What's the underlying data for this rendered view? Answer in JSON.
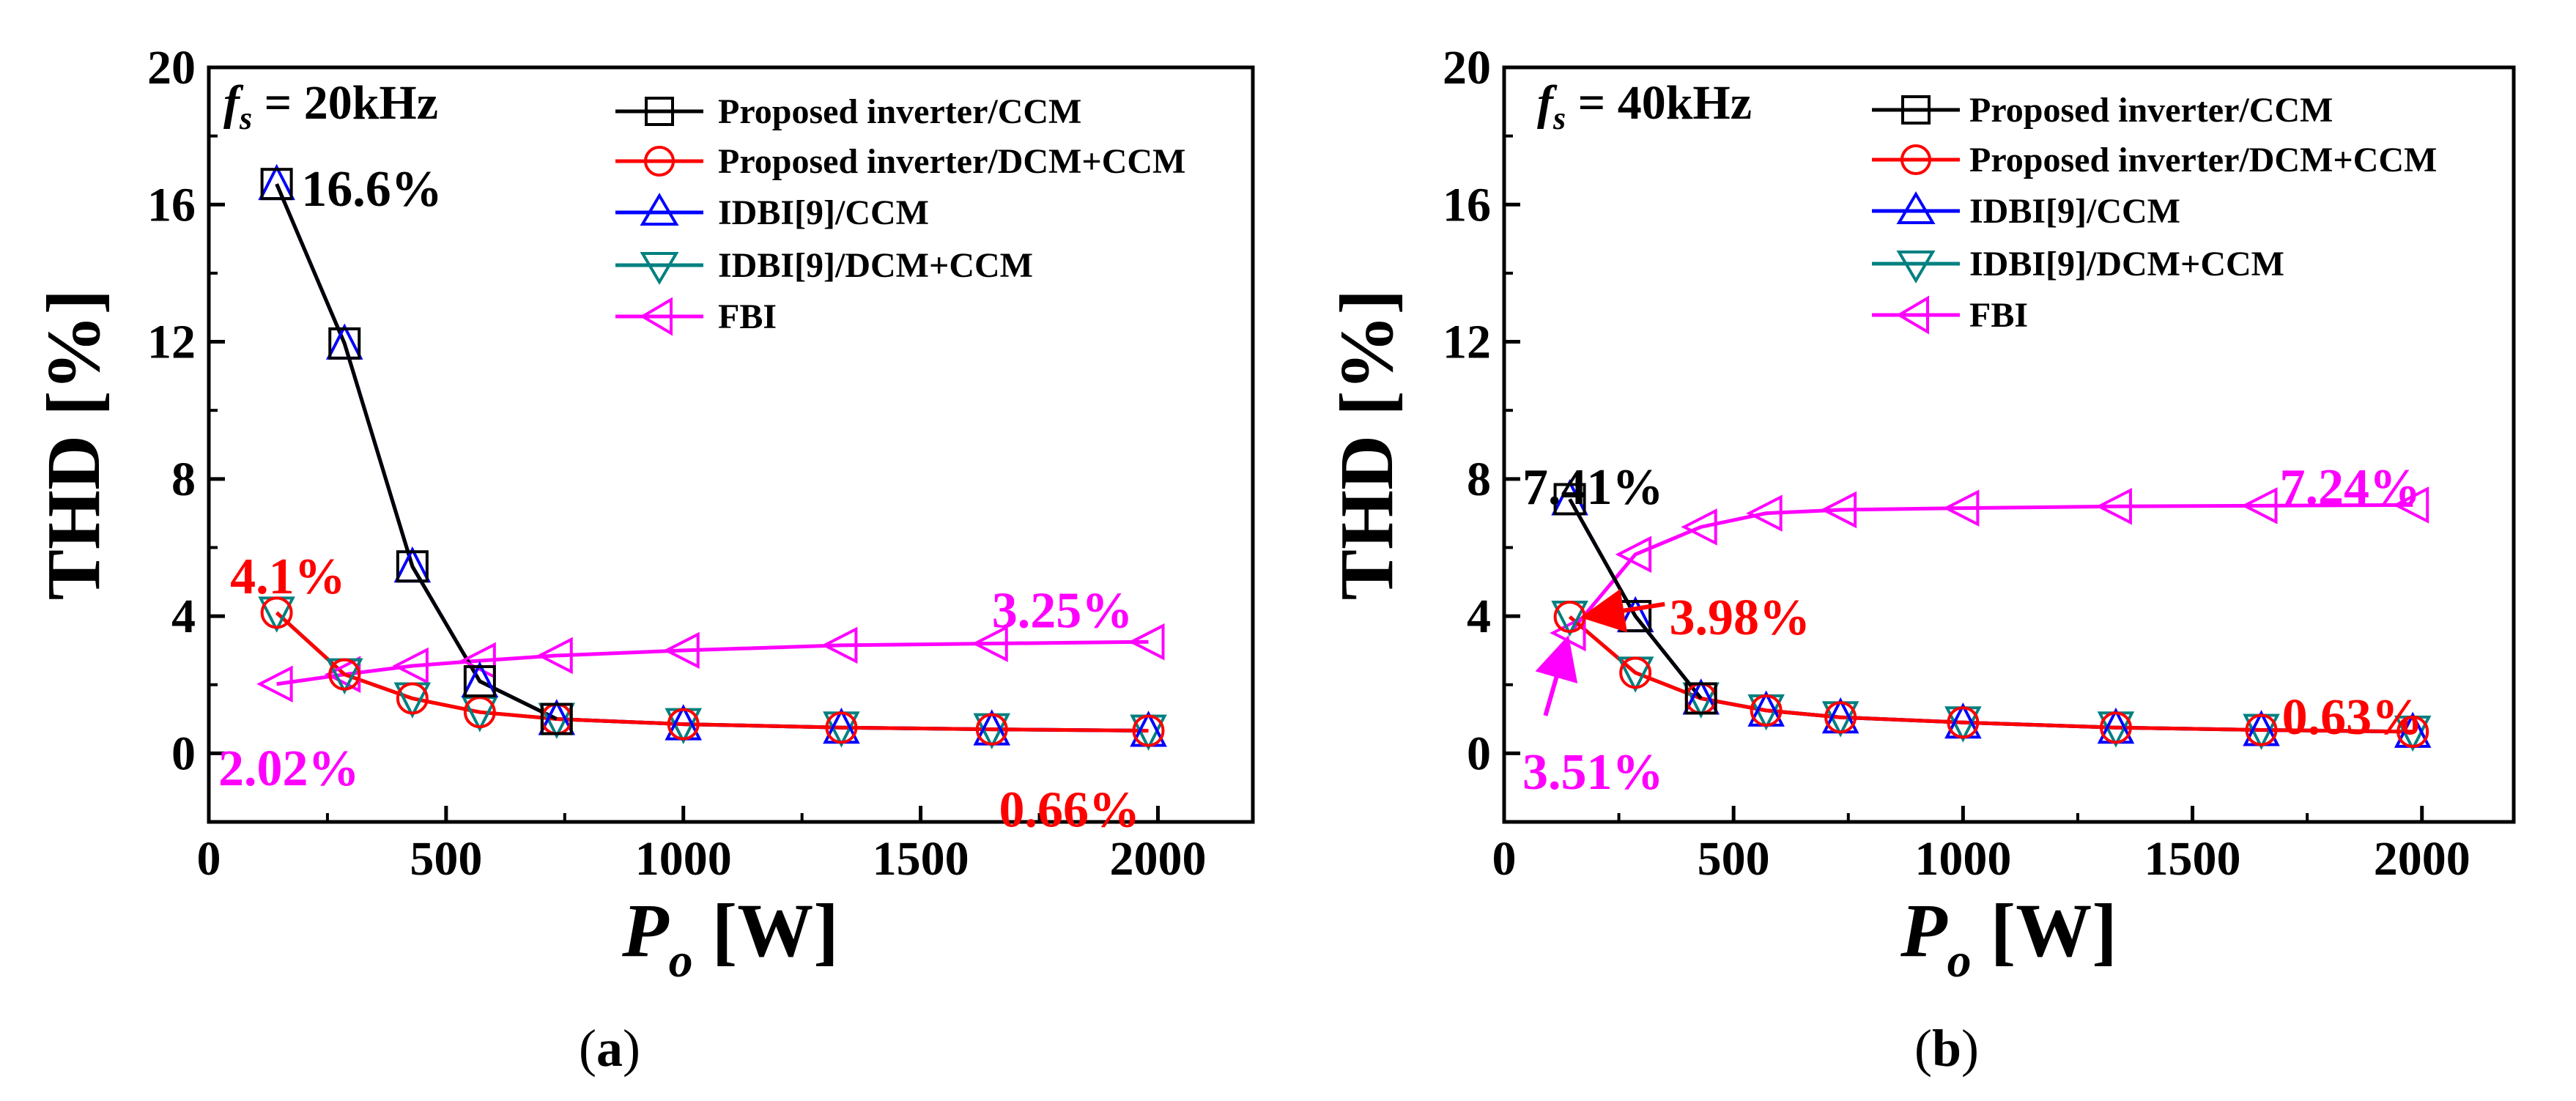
{
  "colors": {
    "proposed_ccm": "#000000",
    "proposed_dcm_ccm": "#ff0000",
    "idbi_ccm": "#0000ff",
    "idbi_dcm_ccm": "#008080",
    "fbi": "#ff00ff"
  },
  "chart_data": [
    {
      "type": "line",
      "id": "a",
      "caption_prefix": "(",
      "caption_letter": "a",
      "caption_suffix": ")",
      "fs_symbol": "f",
      "fs_sub": "s",
      "fs_value": " = 20kHz",
      "ylabel": "THD [%]",
      "xlabel_symbol": "P",
      "xlabel_sub": "o",
      "xlabel_unit": " [W]",
      "xlim": [
        0,
        2200
      ],
      "ylim": [
        -2,
        20
      ],
      "xticks": [
        0,
        500,
        1000,
        1500,
        2000
      ],
      "yticks": [
        0,
        4,
        8,
        12,
        16,
        20
      ],
      "x_tick_labels": [
        "0",
        "500",
        "1000",
        "1500",
        "2000"
      ],
      "y_tick_labels": [
        "0",
        "4",
        "8",
        "12",
        "16",
        "20"
      ],
      "legend_placement": "top-right",
      "series": [
        {
          "name": "Proposed inverter/CCM",
          "color": "#000000",
          "marker": "square",
          "x": [
            143,
            286,
            429,
            571,
            733
          ],
          "y": [
            16.6,
            11.95,
            5.45,
            2.1,
            1.0
          ]
        },
        {
          "name": "Proposed inverter/DCM+CCM",
          "color": "#ff0000",
          "marker": "circle",
          "x": [
            143,
            286,
            429,
            571,
            733,
            1000,
            1333,
            1650,
            1980
          ],
          "y": [
            4.1,
            2.3,
            1.6,
            1.2,
            1.0,
            0.85,
            0.75,
            0.7,
            0.66
          ]
        },
        {
          "name": "IDBI[9]/CCM",
          "color": "#0000ff",
          "marker": "triangle-up",
          "x": [
            143,
            286,
            429,
            571,
            733,
            1000,
            1333,
            1650,
            1980
          ],
          "y": [
            16.6,
            11.95,
            5.45,
            2.1,
            1.0,
            0.85,
            0.75,
            0.7,
            0.66
          ]
        },
        {
          "name": "IDBI[9]/DCM+CCM",
          "color": "#008080",
          "marker": "triangle-down",
          "x": [
            143,
            286,
            429,
            571,
            733,
            1000,
            1333,
            1650,
            1980
          ],
          "y": [
            4.1,
            2.3,
            1.6,
            1.2,
            1.0,
            0.85,
            0.75,
            0.7,
            0.66
          ]
        },
        {
          "name": "FBI",
          "color": "#ff00ff",
          "marker": "triangle-left",
          "x": [
            143,
            286,
            429,
            571,
            733,
            1000,
            1333,
            1650,
            1980
          ],
          "y": [
            2.02,
            2.3,
            2.55,
            2.7,
            2.85,
            3.0,
            3.15,
            3.2,
            3.25
          ]
        }
      ],
      "annotations": [
        {
          "text": "16.6%",
          "color": "#000000",
          "x": 195,
          "y": 16.5
        },
        {
          "text": "4.1%",
          "color": "#ff0000",
          "x": 45,
          "y": 5.2
        },
        {
          "text": "3.25%",
          "color": "#ff00ff",
          "x": 1650,
          "y": 4.2
        },
        {
          "text": "2.02%",
          "color": "#ff00ff",
          "x": 20,
          "y": -0.4
        },
        {
          "text": "0.66%",
          "color": "#ff0000",
          "x": 1665,
          "y": -1.6
        }
      ]
    },
    {
      "type": "line",
      "id": "b",
      "caption_prefix": "(",
      "caption_letter": "b",
      "caption_suffix": ")",
      "fs_symbol": "f",
      "fs_sub": "s",
      "fs_value": " = 40kHz",
      "ylabel": "THD [%]",
      "xlabel_symbol": "P",
      "xlabel_sub": "o",
      "xlabel_unit": " [W]",
      "xlim": [
        0,
        2200
      ],
      "ylim": [
        -2,
        20
      ],
      "xticks": [
        0,
        500,
        1000,
        1500,
        2000
      ],
      "yticks": [
        0,
        4,
        8,
        12,
        16,
        20
      ],
      "x_tick_labels": [
        "0",
        "500",
        "1000",
        "1500",
        "2000"
      ],
      "y_tick_labels": [
        "0",
        "4",
        "8",
        "12",
        "16",
        "20"
      ],
      "legend_placement": "top-right",
      "series": [
        {
          "name": "Proposed inverter/CCM",
          "color": "#000000",
          "marker": "square",
          "x": [
            143,
            286,
            429
          ],
          "y": [
            7.41,
            4.0,
            1.6
          ]
        },
        {
          "name": "Proposed inverter/DCM+CCM",
          "color": "#ff0000",
          "marker": "circle",
          "x": [
            143,
            286,
            429,
            571,
            733,
            1000,
            1333,
            1650,
            1980
          ],
          "y": [
            3.98,
            2.35,
            1.6,
            1.25,
            1.05,
            0.9,
            0.75,
            0.68,
            0.63
          ]
        },
        {
          "name": "IDBI[9]/CCM",
          "color": "#0000ff",
          "marker": "triangle-up",
          "x": [
            143,
            286,
            429,
            571,
            733,
            1000,
            1333,
            1650,
            1980
          ],
          "y": [
            7.41,
            4.0,
            1.6,
            1.25,
            1.05,
            0.9,
            0.75,
            0.68,
            0.63
          ]
        },
        {
          "name": "IDBI[9]/DCM+CCM",
          "color": "#008080",
          "marker": "triangle-down",
          "x": [
            143,
            286,
            429,
            571,
            733,
            1000,
            1333,
            1650,
            1980
          ],
          "y": [
            3.98,
            2.35,
            1.6,
            1.25,
            1.05,
            0.9,
            0.75,
            0.68,
            0.63
          ]
        },
        {
          "name": "FBI",
          "color": "#ff00ff",
          "marker": "triangle-left",
          "x": [
            143,
            286,
            429,
            571,
            733,
            1000,
            1333,
            1650,
            1980
          ],
          "y": [
            3.51,
            5.8,
            6.6,
            7.0,
            7.1,
            7.15,
            7.2,
            7.22,
            7.24
          ]
        }
      ],
      "annotations": [
        {
          "text": "7.41%",
          "color": "#000000",
          "x": 40,
          "y": 7.8
        },
        {
          "text": "3.98%",
          "color": "#ff0000",
          "x": 360,
          "y": 4.0
        },
        {
          "text": "7.24%",
          "color": "#ff00ff",
          "x": 1690,
          "y": 7.8
        },
        {
          "text": "0.63%",
          "color": "#ff0000",
          "x": 1695,
          "y": 1.1
        },
        {
          "text": "3.51%",
          "color": "#ff00ff",
          "x": 40,
          "y": -0.5
        }
      ],
      "arrows": [
        {
          "color": "#ff0000",
          "from": [
            350,
            4.35
          ],
          "to": [
            185,
            4.0
          ]
        },
        {
          "color": "#ff00ff",
          "from": [
            90,
            1.1
          ],
          "to": [
            135,
            3.2
          ]
        }
      ]
    }
  ]
}
